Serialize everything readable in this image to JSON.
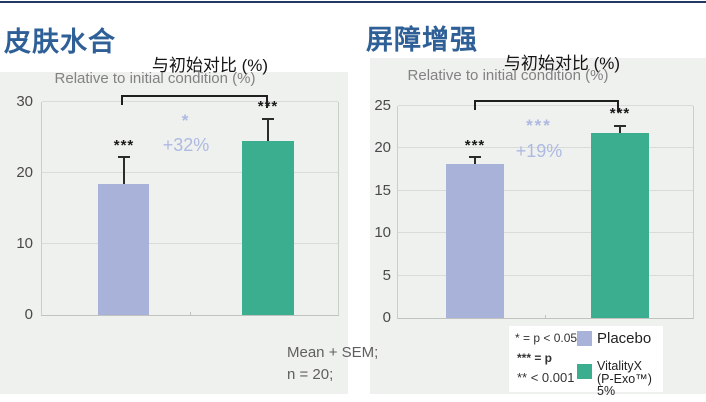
{
  "page": {
    "top_rule_color": "#1F3864",
    "title_color": "#2E5F96",
    "panel_bg": "#EFF1EE",
    "grid_color": "#D8DBD7",
    "annotation_color": "#AEB9E2"
  },
  "chart_data": [
    {
      "type": "bar",
      "title": "皮肤水合",
      "subtitle_cn": "与初始对比 (%)",
      "subtitle_en": "Relative to initial condition (%)",
      "categories": [
        "Placebo",
        "VitalityX (P-Exo™) 5%"
      ],
      "values": [
        18.5,
        24.5
      ],
      "sem_upper": [
        3.9,
        3.3
      ],
      "bar_sig": [
        "***",
        "***"
      ],
      "comparison": {
        "sig": "*",
        "delta": "+32%"
      },
      "ylim": [
        0,
        30
      ],
      "yticks": [
        0,
        10,
        20,
        30
      ],
      "grid": true,
      "legend_position": "shared-bottom-right"
    },
    {
      "type": "bar",
      "title": "屏障增强",
      "subtitle_cn": "与初始对比 (%)",
      "subtitle_en": "Relative to initial condition (%)",
      "categories": [
        "Placebo",
        "VitalityX (P-Exo™) 5%"
      ],
      "values": [
        18.2,
        21.8
      ],
      "sem_upper": [
        0.9,
        1.0
      ],
      "bar_sig": [
        "***",
        "***"
      ],
      "comparison": {
        "sig": "***",
        "delta": "+19%"
      },
      "ylim": [
        0,
        25
      ],
      "yticks": [
        0,
        5,
        10,
        15,
        20,
        25
      ],
      "grid": true,
      "legend_position": "shared-bottom-right"
    }
  ],
  "footnote": {
    "line1": "Mean + SEM;",
    "line2": "n = 20;"
  },
  "legend": {
    "notes": [
      "* = p < 0.05",
      "*** = p",
      "** < 0.001"
    ],
    "items": [
      {
        "label": "Placebo",
        "label2": "",
        "color": "#A9B3DA"
      },
      {
        "label": "VitalityX",
        "label2": "(P-Exo™) 5%",
        "color": "#3BAE8F"
      }
    ]
  }
}
